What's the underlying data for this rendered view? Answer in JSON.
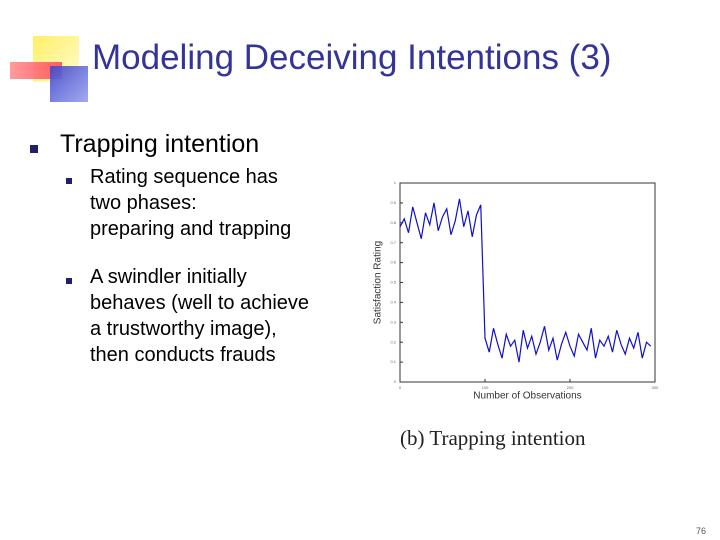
{
  "header": {
    "title": "Modeling Deceiving Intentions (3)"
  },
  "bullets": [
    {
      "text": "Trapping intention",
      "children": [
        {
          "lines": [
            "Rating sequence has",
            "two phases:",
            "preparing and trapping"
          ]
        },
        {
          "lines": [
            "A swindler initially",
            "behaves (well to achieve",
            "a trustworthy image),",
            "then conducts frauds"
          ]
        }
      ]
    }
  ],
  "chart_data": {
    "type": "line",
    "xlabel": "Number of Observations",
    "ylabel": "Satisfaction Rating",
    "caption": "(b) Trapping intention",
    "x": [
      0,
      5,
      10,
      15,
      20,
      25,
      30,
      35,
      40,
      45,
      50,
      55,
      60,
      65,
      70,
      75,
      80,
      85,
      90,
      95,
      100,
      105,
      110,
      115,
      120,
      125,
      130,
      135,
      140,
      145,
      150,
      155,
      160,
      165,
      170,
      175,
      180,
      185,
      190,
      195,
      200,
      205,
      210,
      215,
      220,
      225,
      230,
      235,
      240,
      245,
      250,
      255,
      260,
      265,
      270,
      275,
      280,
      285,
      290,
      295
    ],
    "values": [
      0.78,
      0.82,
      0.75,
      0.88,
      0.8,
      0.72,
      0.85,
      0.79,
      0.9,
      0.76,
      0.83,
      0.87,
      0.74,
      0.81,
      0.92,
      0.78,
      0.86,
      0.73,
      0.84,
      0.89,
      0.22,
      0.15,
      0.27,
      0.19,
      0.12,
      0.24,
      0.18,
      0.21,
      0.1,
      0.26,
      0.17,
      0.23,
      0.14,
      0.2,
      0.28,
      0.16,
      0.22,
      0.11,
      0.19,
      0.25,
      0.18,
      0.13,
      0.24,
      0.2,
      0.16,
      0.27,
      0.12,
      0.21,
      0.18,
      0.23,
      0.15,
      0.26,
      0.19,
      0.14,
      0.22,
      0.17,
      0.25,
      0.12,
      0.2,
      0.18
    ],
    "color": "#1010c8",
    "xlim": [
      0,
      300
    ],
    "ylim": [
      0,
      1
    ],
    "xticks": [
      0,
      100,
      200,
      300
    ],
    "yticks": [
      0,
      0.1,
      0.2,
      0.3,
      0.4,
      0.5,
      0.6,
      0.7,
      0.8,
      0.9,
      1
    ]
  },
  "page_number": "76"
}
